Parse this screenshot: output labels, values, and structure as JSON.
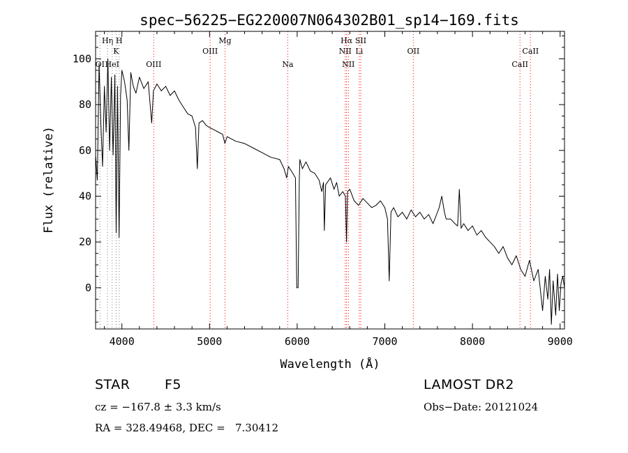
{
  "chart_data": {
    "type": "line",
    "title": "spec−56225−EG220007N064302B01_sp14−169.fits",
    "xlabel": "Wavelength (Å)",
    "ylabel": "Flux (relative)",
    "xlim": [
      3700,
      9050
    ],
    "ylim": [
      -18,
      112
    ],
    "xticks": [
      4000,
      5000,
      6000,
      7000,
      8000,
      9000
    ],
    "yticks": [
      0,
      20,
      40,
      60,
      80,
      100
    ],
    "grid": false,
    "legend": "none",
    "line_color": "#000000",
    "spectrum": [
      [
        3700,
        58
      ],
      [
        3720,
        47
      ],
      [
        3740,
        98
      ],
      [
        3760,
        72
      ],
      [
        3780,
        53
      ],
      [
        3800,
        88
      ],
      [
        3820,
        68
      ],
      [
        3840,
        100
      ],
      [
        3860,
        60
      ],
      [
        3880,
        92
      ],
      [
        3900,
        58
      ],
      [
        3920,
        93
      ],
      [
        3935,
        24
      ],
      [
        3950,
        88
      ],
      [
        3968,
        22
      ],
      [
        3985,
        84
      ],
      [
        4000,
        95
      ],
      [
        4030,
        90
      ],
      [
        4060,
        82
      ],
      [
        4080,
        60
      ],
      [
        4101,
        94
      ],
      [
        4130,
        88
      ],
      [
        4160,
        85
      ],
      [
        4200,
        92
      ],
      [
        4250,
        87
      ],
      [
        4300,
        90
      ],
      [
        4340,
        72
      ],
      [
        4360,
        86
      ],
      [
        4400,
        89
      ],
      [
        4450,
        86
      ],
      [
        4500,
        88
      ],
      [
        4550,
        84
      ],
      [
        4600,
        86
      ],
      [
        4650,
        82
      ],
      [
        4700,
        79
      ],
      [
        4750,
        76
      ],
      [
        4800,
        75
      ],
      [
        4840,
        70
      ],
      [
        4861,
        52
      ],
      [
        4880,
        72
      ],
      [
        4920,
        73
      ],
      [
        4960,
        71
      ],
      [
        5000,
        70
      ],
      [
        5050,
        69
      ],
      [
        5100,
        68
      ],
      [
        5150,
        67
      ],
      [
        5175,
        63
      ],
      [
        5200,
        66
      ],
      [
        5300,
        64
      ],
      [
        5400,
        63
      ],
      [
        5500,
        61
      ],
      [
        5600,
        59
      ],
      [
        5700,
        57
      ],
      [
        5800,
        56
      ],
      [
        5850,
        52
      ],
      [
        5880,
        48
      ],
      [
        5900,
        53
      ],
      [
        5950,
        50
      ],
      [
        5980,
        48
      ],
      [
        5995,
        0
      ],
      [
        6010,
        0
      ],
      [
        6025,
        48
      ],
      [
        6030,
        56
      ],
      [
        6060,
        52
      ],
      [
        6100,
        55
      ],
      [
        6150,
        51
      ],
      [
        6200,
        50
      ],
      [
        6250,
        47
      ],
      [
        6280,
        42
      ],
      [
        6300,
        46
      ],
      [
        6310,
        25
      ],
      [
        6325,
        45
      ],
      [
        6380,
        48
      ],
      [
        6420,
        43
      ],
      [
        6450,
        46
      ],
      [
        6480,
        40
      ],
      [
        6520,
        42
      ],
      [
        6550,
        40
      ],
      [
        6563,
        20
      ],
      [
        6575,
        42
      ],
      [
        6600,
        43
      ],
      [
        6650,
        38
      ],
      [
        6700,
        36
      ],
      [
        6750,
        39
      ],
      [
        6800,
        37
      ],
      [
        6850,
        35
      ],
      [
        6900,
        36
      ],
      [
        6950,
        38
      ],
      [
        7000,
        35
      ],
      [
        7030,
        30
      ],
      [
        7050,
        3
      ],
      [
        7070,
        33
      ],
      [
        7100,
        35
      ],
      [
        7150,
        31
      ],
      [
        7200,
        33
      ],
      [
        7250,
        30
      ],
      [
        7300,
        34
      ],
      [
        7350,
        31
      ],
      [
        7400,
        33
      ],
      [
        7450,
        30
      ],
      [
        7500,
        32
      ],
      [
        7550,
        28
      ],
      [
        7600,
        33
      ],
      [
        7620,
        35
      ],
      [
        7650,
        40
      ],
      [
        7680,
        33
      ],
      [
        7700,
        30
      ],
      [
        7750,
        30
      ],
      [
        7800,
        28
      ],
      [
        7830,
        27
      ],
      [
        7850,
        43
      ],
      [
        7870,
        26
      ],
      [
        7900,
        28
      ],
      [
        7950,
        25
      ],
      [
        8000,
        27
      ],
      [
        8050,
        23
      ],
      [
        8100,
        25
      ],
      [
        8150,
        22
      ],
      [
        8200,
        20
      ],
      [
        8250,
        18
      ],
      [
        8300,
        15
      ],
      [
        8350,
        18
      ],
      [
        8400,
        13
      ],
      [
        8450,
        10
      ],
      [
        8500,
        14
      ],
      [
        8550,
        8
      ],
      [
        8600,
        5
      ],
      [
        8650,
        12
      ],
      [
        8700,
        3
      ],
      [
        8750,
        8
      ],
      [
        8800,
        -10
      ],
      [
        8830,
        5
      ],
      [
        8860,
        -5
      ],
      [
        8880,
        8
      ],
      [
        8900,
        -16
      ],
      [
        8920,
        3
      ],
      [
        8950,
        -12
      ],
      [
        8970,
        6
      ],
      [
        8990,
        -10
      ],
      [
        9010,
        2
      ],
      [
        9030,
        5
      ],
      [
        9050,
        0
      ]
    ],
    "line_markers": [
      {
        "label": "OI",
        "wavelength": 3750,
        "color": "#808080",
        "row": 1
      },
      {
        "label": "Hη",
        "wavelength": 3836,
        "color": "#808080",
        "row": 0
      },
      {
        "label": "HeI",
        "wavelength": 3889,
        "color": "#808080",
        "row": 1
      },
      {
        "label": "K",
        "wavelength": 3934,
        "color": "#808080",
        "row": 2
      },
      {
        "label": "H",
        "wavelength": 3969,
        "color": "#808080",
        "row": 0
      },
      {
        "label": "OIII",
        "wavelength": 4363,
        "color": "#ff0000",
        "row": 1
      },
      {
        "label": "OIII",
        "wavelength": 5007,
        "color": "#ff0000",
        "row": 2
      },
      {
        "label": "Mg",
        "wavelength": 5176,
        "color": "#ff0000",
        "row": 0
      },
      {
        "label": "Na",
        "wavelength": 5893,
        "color": "#ff0000",
        "row": 1
      },
      {
        "label": "Hα",
        "wavelength": 6563,
        "color": "#ff0000",
        "row": 0
      },
      {
        "label": "NII",
        "wavelength": 6548,
        "color": "#ff0000",
        "row": 2
      },
      {
        "label": "NII",
        "wavelength": 6584,
        "color": "#ff0000",
        "row": 1
      },
      {
        "label": "Li",
        "wavelength": 6708,
        "color": "#ff0000",
        "row": 2
      },
      {
        "label": "OII",
        "wavelength": 7325,
        "color": "#ff0000",
        "row": 2
      },
      {
        "label": "SII",
        "wavelength": 6725,
        "color": "#ff0000",
        "row": 0
      },
      {
        "label": "CaII",
        "wavelength": 8542,
        "color": "#ff0000",
        "row": 1
      },
      {
        "label": "CaII",
        "wavelength": 8662,
        "color": "#ff0000",
        "row": 2
      }
    ]
  },
  "info": {
    "class_label": "STAR",
    "subclass": "F5",
    "survey": "LAMOST DR2",
    "cz": "cz = −167.8 ± 3.3 km/s",
    "obs_date": "Obs−Date: 20121024",
    "coords": "RA = 328.49468, DEC =   7.30412"
  }
}
